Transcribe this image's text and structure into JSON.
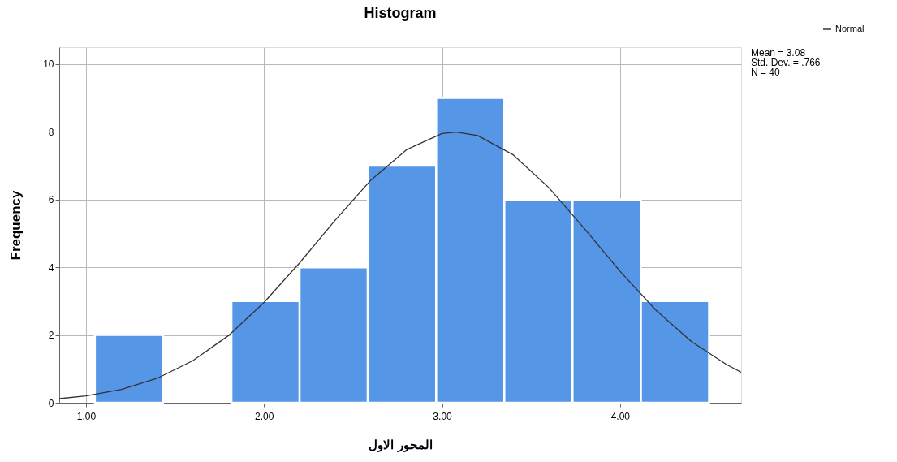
{
  "chart_data": {
    "type": "histogram",
    "title": "Histogram",
    "xlabel": "المحور الاول",
    "ylabel": "Frequency",
    "annotations": [
      "Mean = 3.08",
      "Std. Dev. = .766",
      "N = 40"
    ],
    "series": [
      {
        "color": "#5596e6",
        "bins": [
          1.05,
          1.433,
          1.817,
          2.2,
          2.583,
          2.967,
          3.35,
          3.733,
          4.117,
          4.5
        ],
        "values": [
          2,
          0,
          3,
          4,
          7,
          9,
          6,
          6,
          3
        ]
      },
      {
        "type": "line",
        "name": "Normal",
        "color": "#333333",
        "x": [
          0.85,
          1.0,
          1.2,
          1.4,
          1.6,
          1.8,
          2.0,
          2.2,
          2.4,
          2.6,
          2.8,
          3.0,
          3.08,
          3.2,
          3.4,
          3.6,
          3.8,
          4.0,
          4.2,
          4.4,
          4.6,
          4.68
        ],
        "values": [
          0.12,
          0.2,
          0.39,
          0.72,
          1.24,
          1.98,
          2.96,
          4.13,
          5.39,
          6.57,
          7.47,
          7.95,
          7.99,
          7.89,
          7.32,
          6.35,
          5.14,
          3.88,
          2.74,
          1.81,
          1.12,
          0.9
        ]
      }
    ],
    "xlim": [
      0.85,
      4.68
    ],
    "ylim": [
      0,
      10.5
    ],
    "xticks": [
      {
        "value": 1,
        "label": "1.00"
      },
      {
        "value": 2,
        "label": "2.00"
      },
      {
        "value": 3,
        "label": "3.00"
      },
      {
        "value": 4,
        "label": "4.00"
      }
    ],
    "yticks": [
      0,
      2,
      4,
      6,
      8,
      10
    ],
    "grid": true,
    "legend": "top right"
  }
}
